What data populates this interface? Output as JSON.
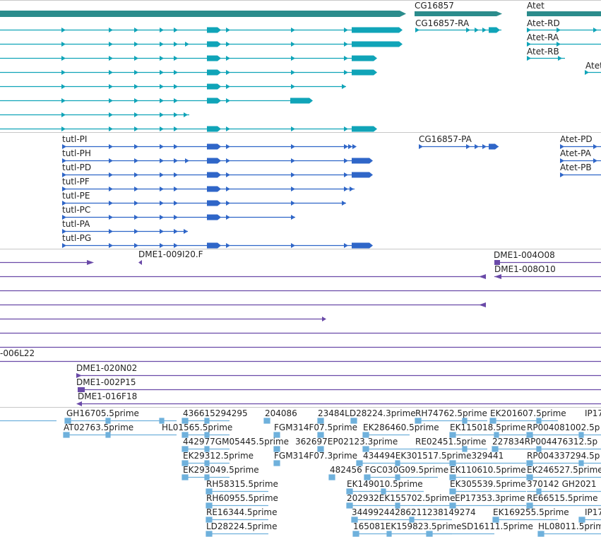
{
  "colors": {
    "gene": "#2b8c8c",
    "transcript": "#10a4b8",
    "cds": "#2f66c8",
    "clone": "#6a4aa8",
    "est": "#6fb1dc",
    "label": "#222222",
    "separator": "#c8c8c8"
  },
  "tracks": {
    "genes": {
      "labels": {
        "cg16857": "CG16857",
        "atet": "Atet"
      }
    },
    "transcripts": {
      "labels": {
        "cg16857_ra": "CG16857-RA",
        "atet_rd": "Atet-RD",
        "atet_ra": "Atet-RA",
        "atet_rb": "Atet-RB",
        "atet_cut": "Atet"
      }
    },
    "cds": {
      "labels": {
        "cg16857_pa": "CG16857-PA",
        "atet_pd": "Atet-PD",
        "atet_pa": "Atet-PA",
        "atet_pb": "Atet-PB",
        "tutl_pi": "tutl-PI",
        "tutl_ph": "tutl-PH",
        "tutl_pd": "tutl-PD",
        "tutl_pf": "tutl-PF",
        "tutl_pe": "tutl-PE",
        "tutl_pc": "tutl-PC",
        "tutl_pa": "tutl-PA",
        "tutl_pg": "tutl-PG"
      }
    },
    "clones": {
      "labels": {
        "dme1_009i20": "DME1-009I20.F",
        "dme1_004o08": "DME1-004O08",
        "dme1_008o10": "DME1-008O10",
        "dme1_006l22": "-006L22",
        "dme1_020n02": "DME1-020N02",
        "dme1_002p15": "DME1-002P15",
        "dme1_016f18": "DME1-016F18"
      }
    },
    "ests": {
      "labels": {
        "gh16705": "GH16705.5prime",
        "n436615294295": "436615294295",
        "n204086": "204086",
        "ld28224_a": "23484LD28224.3prime",
        "rh74762": "RH74762.5prime",
        "ek201607": "EK201607.5prime",
        "ip17": "IP17",
        "at02763": "AT02763.5prime",
        "hl01565": "HL01565.5prime",
        "fgm314f07_5": "FGM314F07.5prime",
        "ek286460": "EK286460.5prime",
        "ek115018": "EK115018.5prime",
        "rp004081002": "RP004081002.5p",
        "gm05445": "442977GM05445.5prime",
        "fgm314f07_3": "362697EP02123.3prime",
        "re02451": "RE02451.5prime",
        "rp004476": "227834RP004476312.5p",
        "ek29312": "EK29312.5prime",
        "fgm314f07_3b": "FGM314F07.3prime",
        "ek301517": "434494EK301517.5prime329441",
        "rp004337": "RP004337294.5p",
        "ek293049": "EK293049.5prime",
        "fgc030g09": "482456 FGC030G09.5prime",
        "ek110610": "EK110610.5prime",
        "ek246527": "EK246527.5prime",
        "rh58315": "RH58315.5prime",
        "ek149010": "EK149010.5prime",
        "ek305539": "EK305539.5prime",
        "gh202": "370142 GH2021",
        "rh60955": "RH60955.5prime",
        "ek155702": "202932EK155702.5prime",
        "ep17353": "EP17353.3prime",
        "re665": "RE66515.5prime",
        "re16344": "RE16344.5prime",
        "n34499": "34499244286211238149274",
        "ek169255": "EK169255.5prime",
        "ip17b": "IP17",
        "ld28224_b": "LD28224.5prime",
        "ek159823": "165081EK159823.5primeSD16111.5prime",
        "hl08011": "HL08011.5prim"
      }
    }
  }
}
